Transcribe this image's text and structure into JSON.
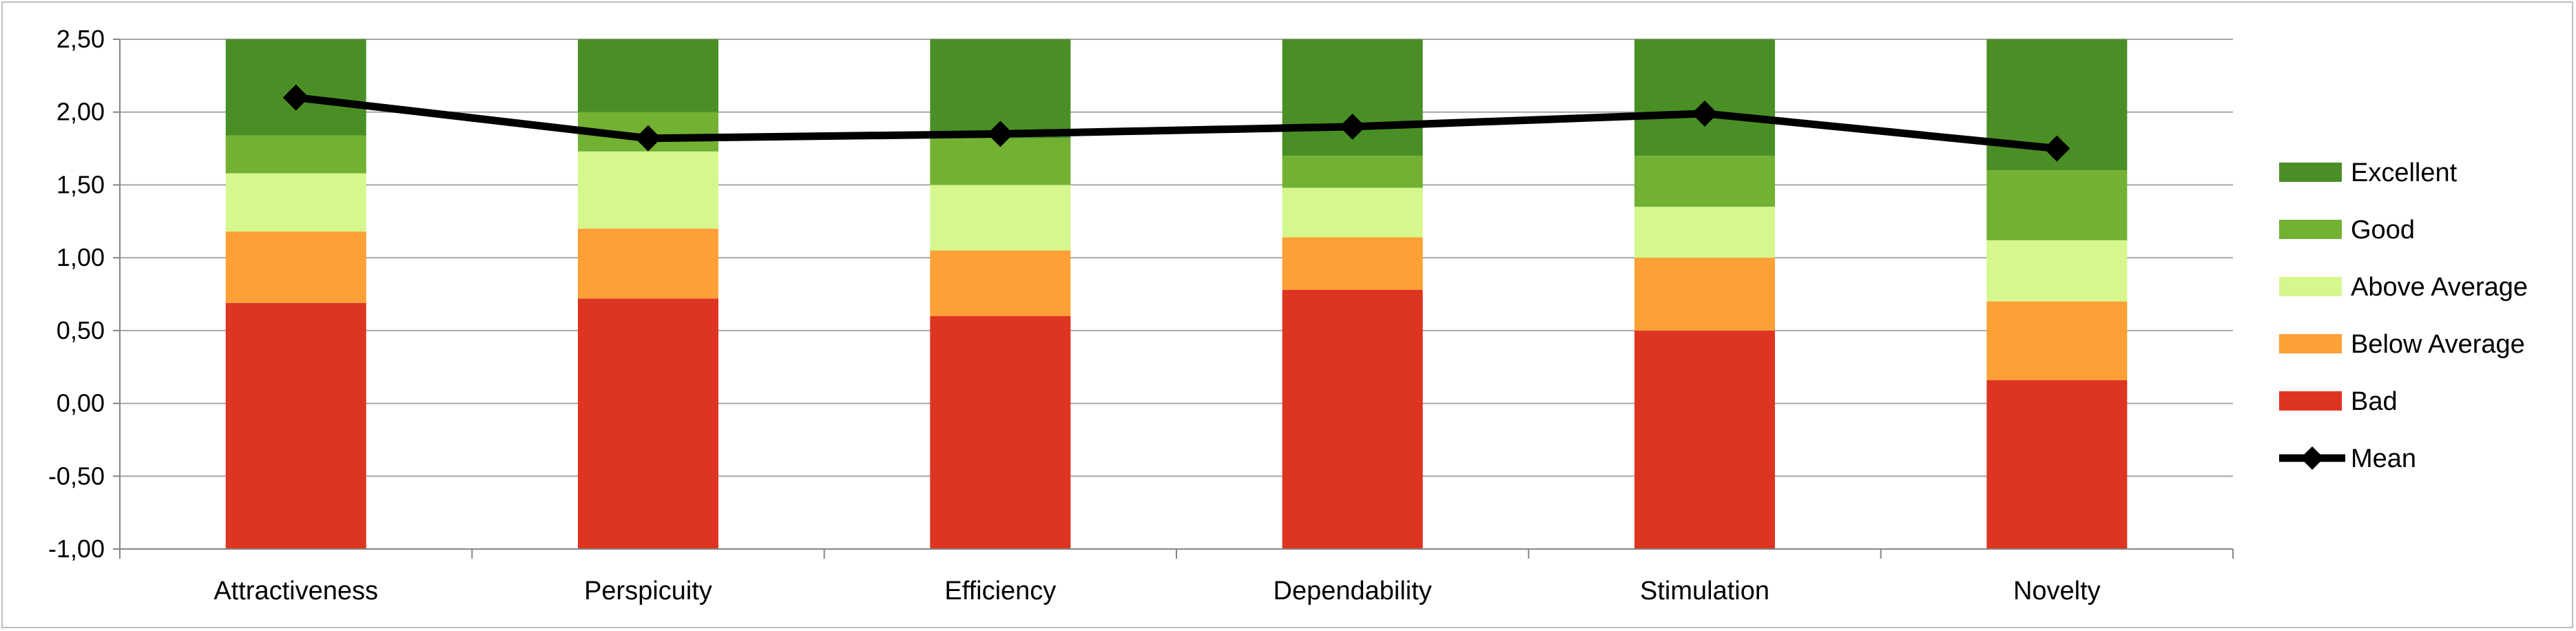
{
  "chart_data": {
    "type": "bar",
    "stacked": true,
    "categories": [
      "Attractiveness",
      "Perspicuity",
      "Efficiency",
      "Dependability",
      "Stimulation",
      "Novelty"
    ],
    "ylim": [
      -1.0,
      2.5
    ],
    "yticks": [
      "-1,00",
      "-0,50",
      "0,00",
      "0,50",
      "1,00",
      "1,50",
      "2,00",
      "2,50"
    ],
    "ytick_values": [
      -1.0,
      -0.5,
      0.0,
      0.5,
      1.0,
      1.5,
      2.0,
      2.5
    ],
    "grid": true,
    "legend_position": "right",
    "series": [
      {
        "name": "Bad",
        "color": "#dd3522",
        "bounds": [
          [
            -1.0,
            0.69
          ],
          [
            -1.0,
            0.72
          ],
          [
            -1.0,
            0.6
          ],
          [
            -1.0,
            0.78
          ],
          [
            -1.0,
            0.5
          ],
          [
            -1.0,
            0.16
          ]
        ]
      },
      {
        "name": "Below Average",
        "color": "#fda035",
        "bounds": [
          [
            0.69,
            1.18
          ],
          [
            0.72,
            1.2
          ],
          [
            0.6,
            1.05
          ],
          [
            0.78,
            1.14
          ],
          [
            0.5,
            1.0
          ],
          [
            0.16,
            0.7
          ]
        ]
      },
      {
        "name": "Above Average",
        "color": "#d5f78e",
        "bounds": [
          [
            1.18,
            1.58
          ],
          [
            1.2,
            1.73
          ],
          [
            1.05,
            1.5
          ],
          [
            1.14,
            1.48
          ],
          [
            1.0,
            1.35
          ],
          [
            0.7,
            1.12
          ]
        ]
      },
      {
        "name": "Good",
        "color": "#72b132",
        "bounds": [
          [
            1.58,
            1.84
          ],
          [
            1.73,
            2.0
          ],
          [
            1.5,
            1.82
          ],
          [
            1.48,
            1.7
          ],
          [
            1.35,
            1.7
          ],
          [
            1.12,
            1.6
          ]
        ]
      },
      {
        "name": "Excellent",
        "color": "#4a8f25",
        "bounds": [
          [
            1.84,
            2.5
          ],
          [
            2.0,
            2.5
          ],
          [
            1.82,
            2.5
          ],
          [
            1.7,
            2.5
          ],
          [
            1.7,
            2.5
          ],
          [
            1.6,
            2.5
          ]
        ]
      }
    ],
    "mean": {
      "name": "Mean",
      "color": "#000000",
      "values": [
        2.1,
        1.82,
        1.85,
        1.9,
        1.99,
        1.75
      ]
    },
    "legend_order": [
      "Excellent",
      "Good",
      "Above Average",
      "Below Average",
      "Bad",
      "Mean"
    ]
  }
}
